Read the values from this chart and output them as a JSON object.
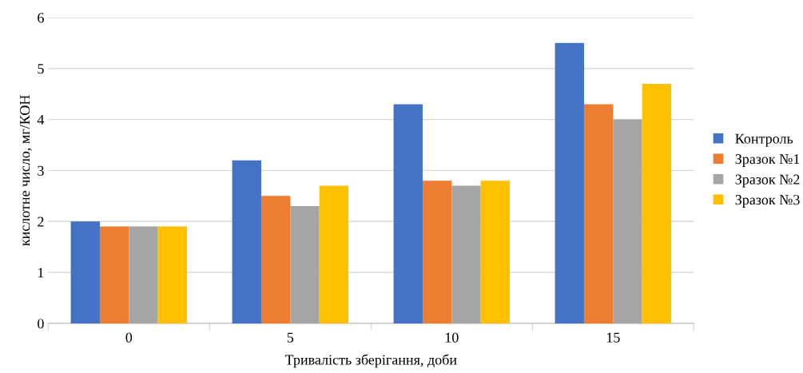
{
  "chart_data": {
    "type": "bar",
    "xlabel": "Тривалість зберігання, доби",
    "ylabel": "кислотне число, мг/КОН",
    "categories": [
      "0",
      "5",
      "10",
      "15"
    ],
    "series": [
      {
        "name": "Контроль",
        "color": "#4472c4",
        "values": [
          2.0,
          3.2,
          4.3,
          5.5
        ]
      },
      {
        "name": "Зразок №1",
        "color": "#ed7d31",
        "values": [
          1.9,
          2.5,
          2.8,
          4.3
        ]
      },
      {
        "name": "Зразок №2",
        "color": "#a5a5a5",
        "values": [
          1.9,
          2.3,
          2.7,
          4.0
        ]
      },
      {
        "name": "Зразок №3",
        "color": "#ffc000",
        "values": [
          1.9,
          2.7,
          2.8,
          4.7
        ]
      }
    ],
    "ylim": [
      0,
      6
    ],
    "yticks": [
      0,
      1,
      2,
      3,
      4,
      5,
      6
    ],
    "grid": "y",
    "legend": "right"
  }
}
